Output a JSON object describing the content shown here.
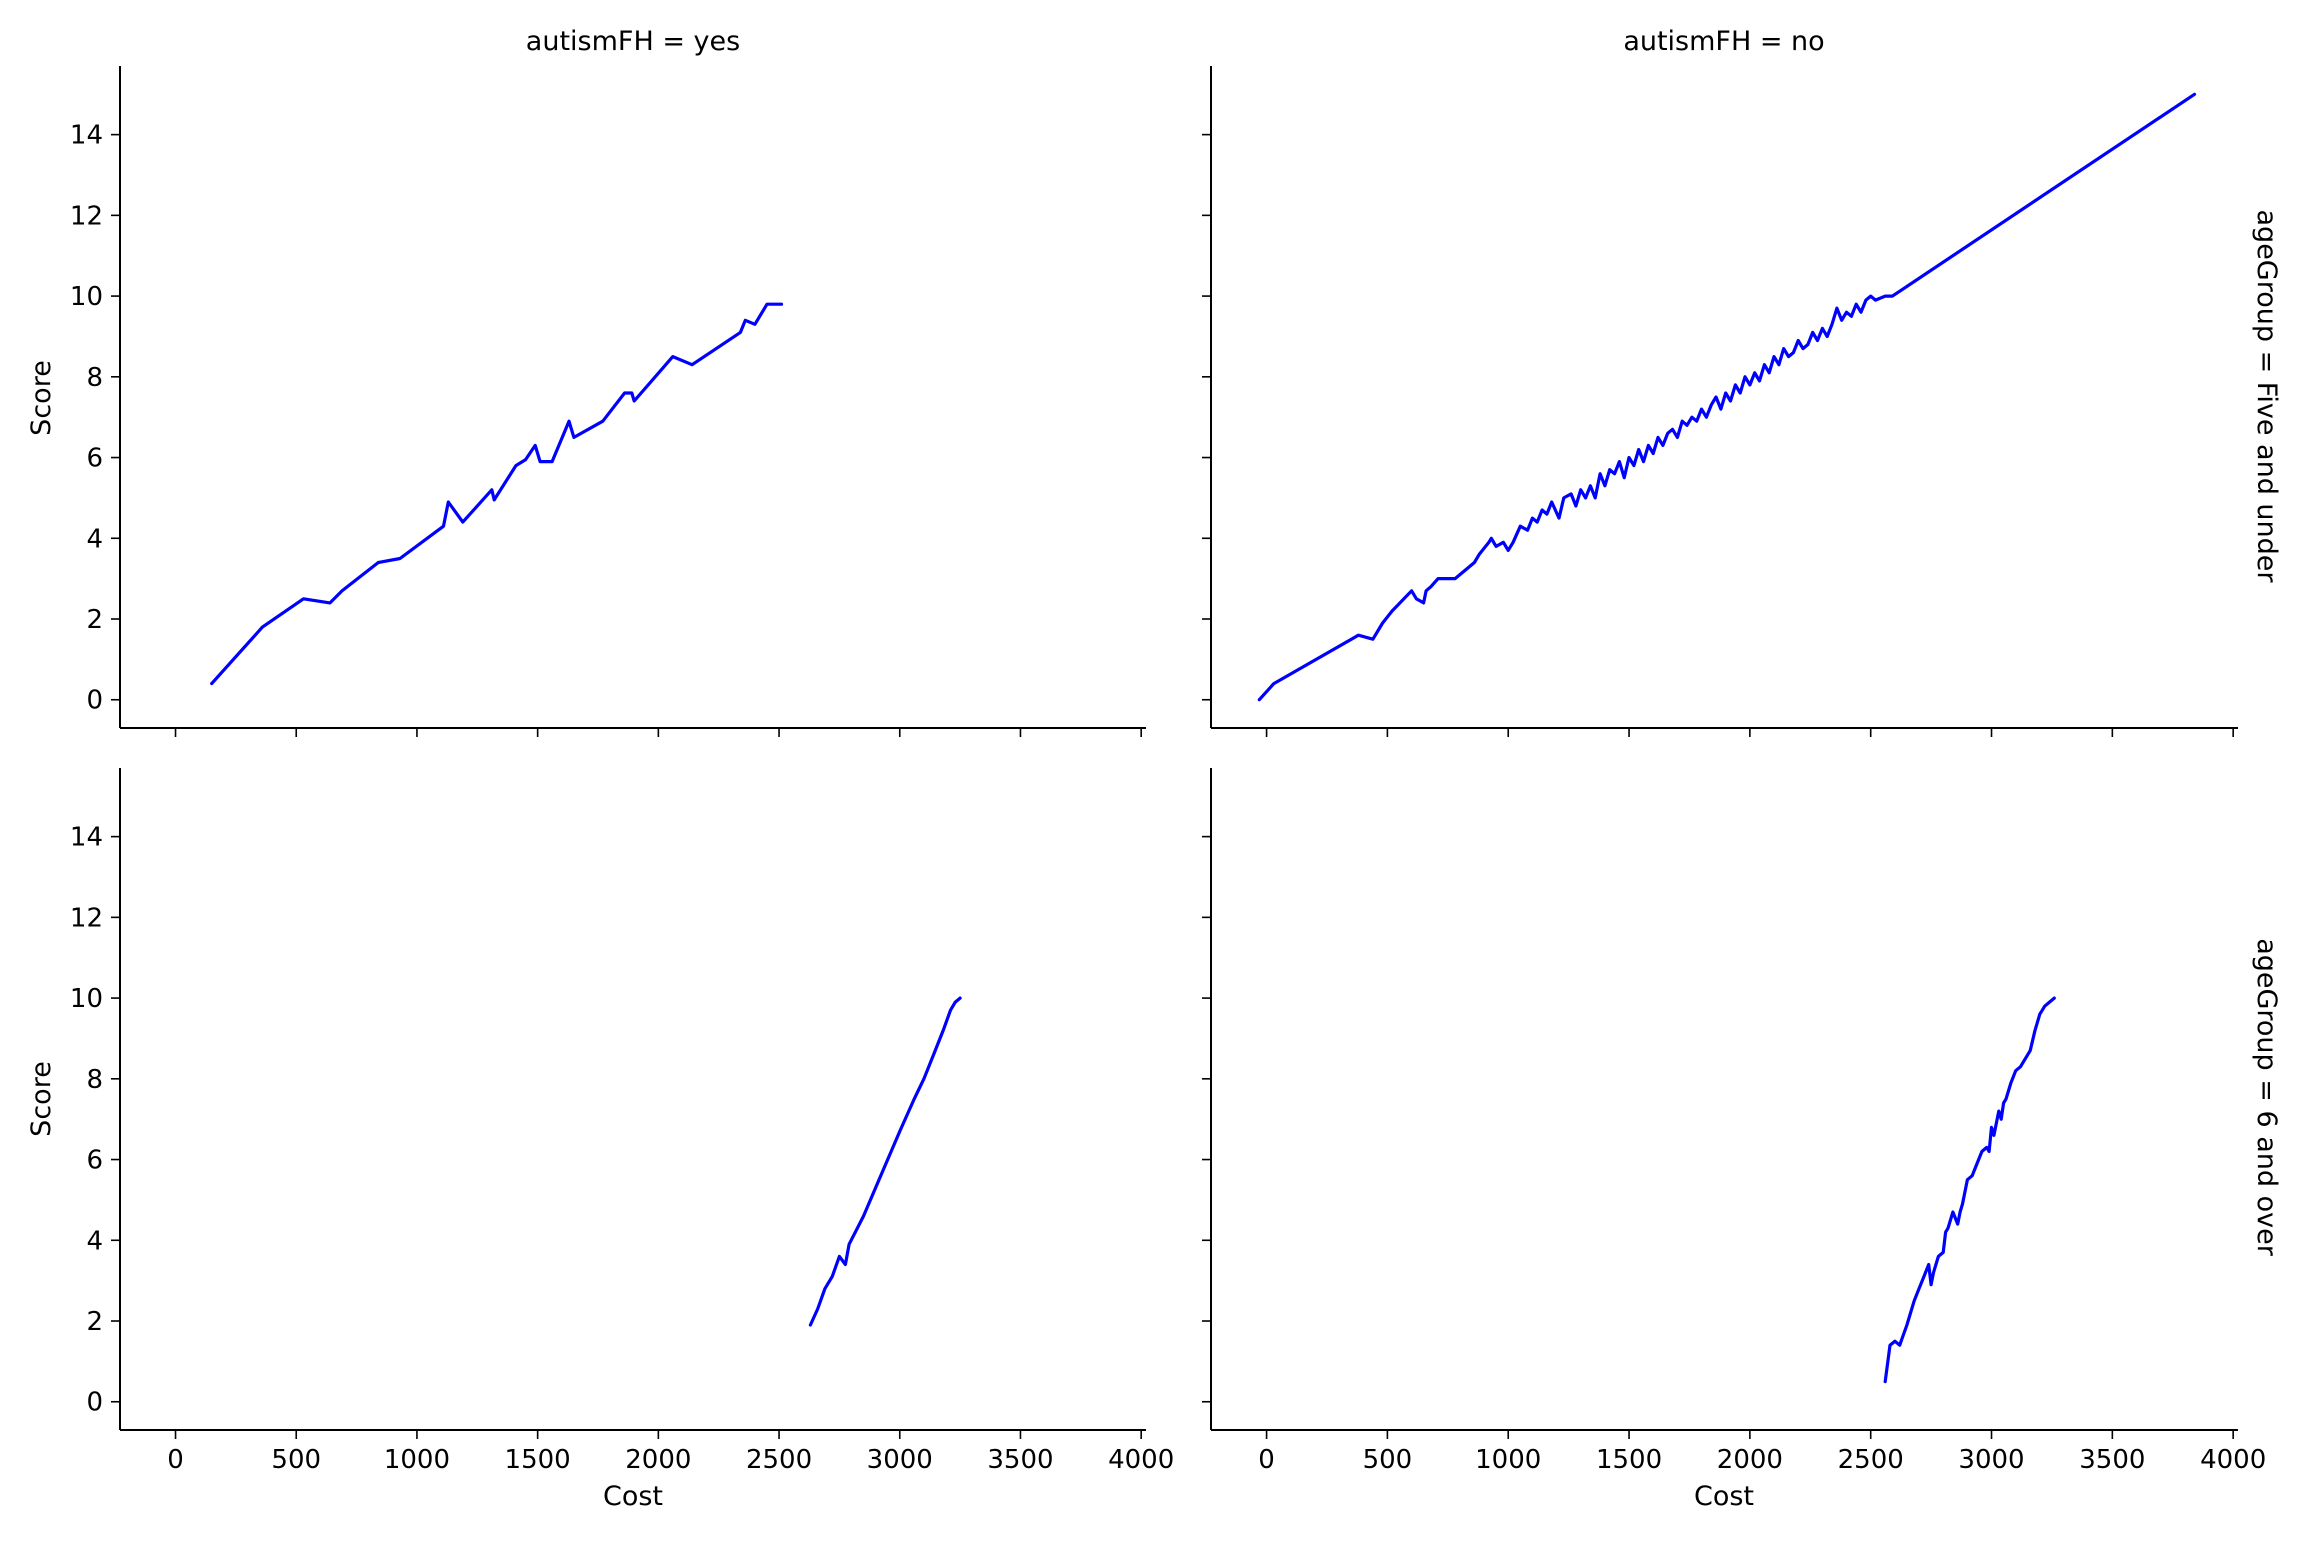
{
  "chart_data": {
    "type": "line",
    "layout": "facet-grid",
    "col_facet": {
      "name": "autismFH",
      "levels": [
        "yes",
        "no"
      ],
      "titles": [
        "autismFH = yes",
        "autismFH = no"
      ]
    },
    "row_facet": {
      "name": "ageGroup",
      "levels": [
        "Five and under",
        "6 and over"
      ],
      "titles": [
        "ageGroup = Five and under",
        "ageGroup = 6 and over"
      ]
    },
    "xlabel": "Cost",
    "ylabel": "Score",
    "xlim": [
      -230,
      4020
    ],
    "ylim": [
      -0.7,
      15.7
    ],
    "xticks": [
      0,
      500,
      1000,
      1500,
      2000,
      2500,
      3000,
      3500,
      4000
    ],
    "yticks": [
      0,
      2,
      4,
      6,
      8,
      10,
      12,
      14
    ],
    "line_color": "#0000ff",
    "ci_color": "#b3b3ff",
    "grid": false,
    "panels": [
      {
        "title": "autismFH = yes",
        "x": [
          150,
          360,
          530,
          640,
          690,
          840,
          930,
          1110,
          1130,
          1190,
          1310,
          1320,
          1410,
          1450,
          1490,
          1510,
          1560,
          1630,
          1650,
          1770,
          1860,
          1890,
          1900,
          2060,
          2140,
          2340,
          2360,
          2400,
          2450,
          2510
        ],
        "y": [
          0.4,
          1.8,
          2.5,
          2.4,
          2.7,
          3.4,
          3.5,
          4.3,
          4.9,
          4.4,
          5.2,
          4.95,
          5.8,
          5.95,
          6.3,
          5.9,
          5.9,
          6.9,
          6.5,
          6.9,
          7.6,
          7.6,
          7.4,
          8.5,
          8.3,
          9.1,
          9.4,
          9.3,
          9.8,
          9.8
        ]
      },
      {
        "title": "autismFH = no",
        "x": [
          -30,
          30,
          380,
          440,
          480,
          520,
          600,
          620,
          650,
          660,
          680,
          710,
          780,
          820,
          860,
          880,
          920,
          930,
          950,
          980,
          1000,
          1020,
          1050,
          1080,
          1100,
          1120,
          1140,
          1160,
          1180,
          1210,
          1230,
          1260,
          1280,
          1300,
          1320,
          1340,
          1360,
          1380,
          1400,
          1420,
          1440,
          1460,
          1480,
          1500,
          1520,
          1540,
          1560,
          1580,
          1600,
          1620,
          1640,
          1660,
          1680,
          1700,
          1720,
          1740,
          1760,
          1780,
          1800,
          1820,
          1840,
          1860,
          1880,
          1900,
          1920,
          1940,
          1960,
          1980,
          2000,
          2020,
          2040,
          2060,
          2080,
          2100,
          2120,
          2140,
          2160,
          2180,
          2200,
          2220,
          2240,
          2260,
          2280,
          2300,
          2320,
          2340,
          2360,
          2380,
          2400,
          2420,
          2440,
          2460,
          2480,
          2500,
          2520,
          2560,
          2590,
          3840
        ],
        "y": [
          0.0,
          0.4,
          1.6,
          1.5,
          1.9,
          2.2,
          2.7,
          2.5,
          2.4,
          2.7,
          2.8,
          3.0,
          3.0,
          3.2,
          3.4,
          3.6,
          3.9,
          4.0,
          3.8,
          3.9,
          3.7,
          3.9,
          4.3,
          4.2,
          4.5,
          4.4,
          4.7,
          4.6,
          4.9,
          4.5,
          5.0,
          5.1,
          4.8,
          5.2,
          5.0,
          5.3,
          5.0,
          5.6,
          5.3,
          5.7,
          5.6,
          5.9,
          5.5,
          6.0,
          5.8,
          6.2,
          5.9,
          6.3,
          6.1,
          6.5,
          6.3,
          6.6,
          6.7,
          6.5,
          6.9,
          6.8,
          7.0,
          6.9,
          7.2,
          7.0,
          7.3,
          7.5,
          7.2,
          7.6,
          7.4,
          7.8,
          7.6,
          8.0,
          7.8,
          8.1,
          7.9,
          8.3,
          8.1,
          8.5,
          8.3,
          8.7,
          8.5,
          8.6,
          8.9,
          8.7,
          8.8,
          9.1,
          8.9,
          9.2,
          9.0,
          9.3,
          9.7,
          9.4,
          9.6,
          9.5,
          9.8,
          9.6,
          9.9,
          10.0,
          9.9,
          10.0,
          10.0,
          15.0
        ]
      },
      {
        "title": "",
        "x": [
          2630,
          2660,
          2690,
          2720,
          2750,
          2775,
          2790,
          2850,
          2900,
          2950,
          3000,
          3030,
          3060,
          3100,
          3140,
          3180,
          3210,
          3230,
          3250
        ],
        "y": [
          1.9,
          2.3,
          2.8,
          3.1,
          3.6,
          3.4,
          3.9,
          4.6,
          5.3,
          6.0,
          6.7,
          7.1,
          7.5,
          8.0,
          8.6,
          9.2,
          9.7,
          9.9,
          10.0
        ]
      },
      {
        "title": "",
        "x": [
          2560,
          2580,
          2600,
          2620,
          2650,
          2680,
          2700,
          2720,
          2740,
          2750,
          2760,
          2780,
          2800,
          2810,
          2820,
          2840,
          2860,
          2870,
          2880,
          2900,
          2920,
          2940,
          2960,
          2980,
          2990,
          3000,
          3010,
          3030,
          3040,
          3050,
          3060,
          3080,
          3100,
          3120,
          3140,
          3160,
          3180,
          3190,
          3200,
          3210,
          3220,
          3240,
          3260
        ],
        "y": [
          0.5,
          1.4,
          1.5,
          1.4,
          1.9,
          2.5,
          2.8,
          3.1,
          3.4,
          2.9,
          3.2,
          3.6,
          3.7,
          4.2,
          4.3,
          4.7,
          4.4,
          4.7,
          4.9,
          5.5,
          5.6,
          5.9,
          6.2,
          6.3,
          6.2,
          6.8,
          6.6,
          7.2,
          7.0,
          7.4,
          7.5,
          7.9,
          8.2,
          8.3,
          8.5,
          8.7,
          9.2,
          9.4,
          9.6,
          9.7,
          9.8,
          9.9,
          10.0
        ]
      }
    ]
  }
}
